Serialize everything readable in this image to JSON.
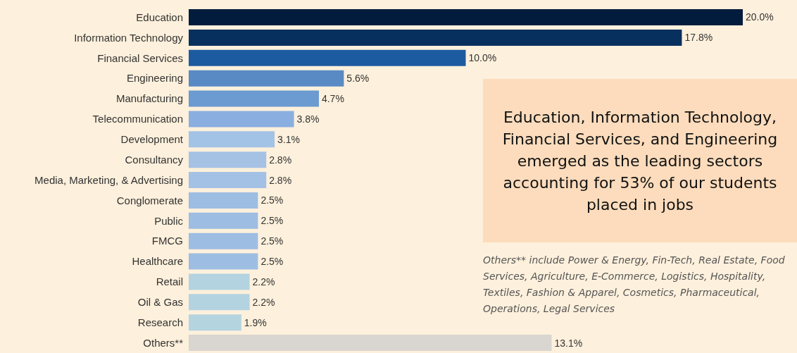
{
  "chart_data": {
    "type": "bar",
    "orientation": "horizontal",
    "categories": [
      "Education",
      "Information Technology",
      "Financial Services",
      "Engineering",
      "Manufacturing",
      "Telecommunication",
      "Development",
      "Consultancy",
      "Media, Marketing, & Advertising",
      "Conglomerate",
      "Public",
      "FMCG",
      "Healthcare",
      "Retail",
      "Oil & Gas",
      "Research",
      "Others**"
    ],
    "values": [
      20.0,
      17.8,
      10.0,
      5.6,
      4.7,
      3.8,
      3.1,
      2.8,
      2.8,
      2.5,
      2.5,
      2.5,
      2.5,
      2.2,
      2.2,
      1.9,
      13.1
    ],
    "value_labels": [
      "20.0%",
      "17.8%",
      "10.0%",
      "5.6%",
      "4.7%",
      "3.8%",
      "3.1%",
      "2.8%",
      "2.8%",
      "2.5%",
      "2.5%",
      "2.5%",
      "2.5%",
      "2.2%",
      "2.2%",
      "1.9%",
      "13.1%"
    ],
    "colors": [
      "#021c3e",
      "#07305e",
      "#1d5ba0",
      "#5a8ac4",
      "#6b9bd0",
      "#8aaee0",
      "#a3c3e6",
      "#a5c2e5",
      "#a3c1e5",
      "#9dbde3",
      "#9dbde3",
      "#9dbde3",
      "#9dbde3",
      "#b4d3e0",
      "#b4d3e0",
      "#b4d4df",
      "#d9d5d0"
    ],
    "annotations": [
      "Education, Information Technology, Financial Services, and Engineering emerged as the leading sectors accounting for 53% of our students placed in jobs",
      "Others** include Power & Energy, Fin-Tech, Real Estate, Food Services, Agriculture, E-Commerce, Logistics, Hospitality, Textiles, Fashion & Apparel, Cosmetics, Pharmaceutical, Operations, Legal Services"
    ]
  }
}
